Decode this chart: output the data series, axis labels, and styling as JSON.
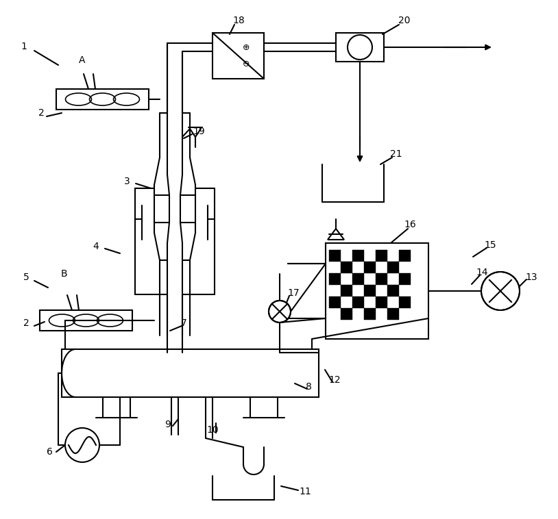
{
  "bg": "#ffffff",
  "lc": "#000000",
  "lw": 1.5,
  "fw": 8.14,
  "fh": 7.58,
  "dpi": 100
}
